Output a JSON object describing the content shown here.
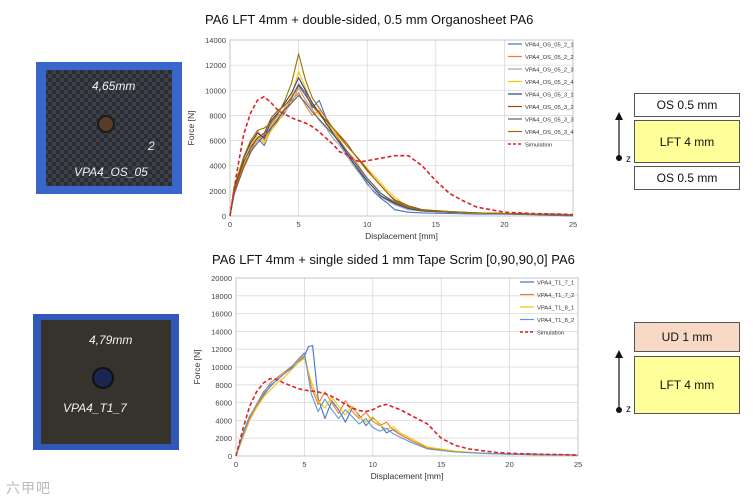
{
  "top": {
    "title": "PA6 LFT 4mm + double-sided, 0.5 mm  Organosheet PA6",
    "photo_labels": [
      "4,65mm",
      "2",
      "VPA4_OS_05"
    ],
    "layers": [
      "OS 0.5 mm",
      "LFT 4 mm",
      "OS 0.5 mm"
    ],
    "z_label": "z"
  },
  "bottom": {
    "title": "PA6 LFT 4mm + single sided 1 mm  Tape Scrim  [0,90,90,0] PA6",
    "photo_labels": [
      "4,79mm",
      "VPA4_T1_7"
    ],
    "layers": [
      "UD 1 mm",
      "LFT 4 mm"
    ],
    "z_label": "z"
  },
  "watermark": "六甲吧",
  "colors": {
    "layer_os": "#ffffff",
    "layer_lft": "#ffff99",
    "layer_ud": "#f8d9c6",
    "simulation": "#e02020"
  },
  "chart_data": [
    {
      "type": "line",
      "xlabel": "Displacement [mm]",
      "ylabel": "Force [N]",
      "xlim": [
        0,
        25
      ],
      "ylim": [
        0,
        14000
      ],
      "xticks": [
        0,
        5,
        10,
        15,
        20,
        25
      ],
      "yticks": [
        0,
        2000,
        4000,
        6000,
        8000,
        10000,
        12000,
        14000
      ],
      "grid": true,
      "legend_position": "right",
      "series": [
        {
          "name": "VPA4_OS_05_2_1",
          "color": "#4472c4",
          "dash": false,
          "x": [
            0,
            0.3,
            1,
            1.5,
            2,
            2.5,
            3,
            3.5,
            4,
            4.5,
            5,
            5.5,
            6,
            6.5,
            7,
            7.5,
            8,
            8.5,
            9,
            9.5,
            10,
            10.5,
            11,
            11.5,
            12,
            13,
            14,
            16,
            18,
            20,
            22,
            25
          ],
          "y": [
            0,
            2000,
            4200,
            5500,
            6200,
            5600,
            7000,
            7600,
            8200,
            9400,
            10500,
            9800,
            8600,
            9200,
            7800,
            6500,
            5800,
            5000,
            4200,
            3400,
            2600,
            1900,
            1400,
            1000,
            500,
            300,
            250,
            200,
            150,
            150,
            100,
            0
          ]
        },
        {
          "name": "VPA4_OS_05_2_2",
          "color": "#ed7d31",
          "dash": false,
          "x": [
            0,
            0.3,
            1,
            1.5,
            2,
            2.5,
            3,
            3.5,
            4,
            4.5,
            5,
            5.5,
            6,
            6.5,
            7,
            7.5,
            8,
            8.5,
            9,
            9.5,
            10,
            10.5,
            11,
            12,
            13,
            14,
            16,
            18,
            20,
            22,
            25
          ],
          "y": [
            0,
            1800,
            3800,
            5000,
            6800,
            6000,
            7200,
            7800,
            8600,
            9200,
            9800,
            8800,
            8000,
            8400,
            7300,
            6800,
            6000,
            5200,
            4600,
            3800,
            3000,
            2400,
            1800,
            1000,
            600,
            400,
            300,
            250,
            200,
            150,
            100
          ]
        },
        {
          "name": "VPA4_OS_05_2_3",
          "color": "#a5a5a5",
          "dash": false,
          "x": [
            0,
            0.3,
            1,
            1.5,
            2,
            2.5,
            3,
            3.5,
            4,
            4.5,
            5,
            5.5,
            6,
            6.5,
            7,
            7.5,
            8,
            8.5,
            9,
            9.5,
            10,
            10.5,
            11,
            12,
            13,
            14,
            16,
            18,
            20,
            22,
            25
          ],
          "y": [
            0,
            2100,
            4400,
            5200,
            6000,
            6500,
            7400,
            8000,
            8300,
            9000,
            10200,
            9200,
            8500,
            7600,
            7000,
            6200,
            5600,
            4800,
            4000,
            3300,
            2500,
            2000,
            1500,
            900,
            500,
            400,
            300,
            200,
            200,
            150,
            100
          ]
        },
        {
          "name": "VPA4_OS_05_2_4",
          "color": "#ffc000",
          "dash": false,
          "x": [
            0,
            0.3,
            1,
            1.5,
            2,
            2.5,
            3,
            3.5,
            4,
            4.5,
            5,
            5.5,
            6,
            6.5,
            7,
            7.5,
            8,
            8.5,
            9,
            9.5,
            10,
            10.5,
            11,
            11.5,
            12,
            12.5,
            13,
            14,
            16,
            18,
            20,
            22,
            25
          ],
          "y": [
            0,
            1900,
            4000,
            5600,
            6400,
            5800,
            6800,
            7500,
            8400,
            9600,
            11500,
            10200,
            8800,
            8000,
            7600,
            6800,
            6200,
            5600,
            5000,
            4400,
            3800,
            3200,
            2600,
            2000,
            1500,
            1100,
            800,
            500,
            350,
            250,
            200,
            150,
            100
          ]
        },
        {
          "name": "VPA4_OS_05_3_1",
          "color": "#264478",
          "dash": false,
          "x": [
            0,
            0.3,
            1,
            1.5,
            2,
            2.5,
            3,
            3.5,
            4,
            4.5,
            5,
            5.5,
            6,
            6.5,
            7,
            7.5,
            8,
            8.5,
            9,
            9.5,
            10,
            10.5,
            11,
            12,
            13,
            14,
            16,
            18,
            20,
            22,
            25
          ],
          "y": [
            0,
            2200,
            4600,
            5800,
            6600,
            6200,
            7600,
            8200,
            9000,
            9800,
            11000,
            10000,
            9000,
            8200,
            7400,
            6600,
            5800,
            5000,
            4200,
            3500,
            2800,
            2200,
            1600,
            1000,
            600,
            400,
            300,
            250,
            200,
            150,
            100
          ]
        },
        {
          "name": "VPA4_OS_05_3_2",
          "color": "#9e480e",
          "dash": false,
          "x": [
            0,
            0.3,
            1,
            1.5,
            2,
            2.5,
            3,
            3.5,
            4,
            4.5,
            5,
            5.5,
            6,
            6.5,
            7,
            7.5,
            8,
            8.5,
            9,
            9.5,
            10,
            10.5,
            11,
            11.5,
            12,
            13,
            14,
            16,
            18,
            20,
            22,
            25
          ],
          "y": [
            0,
            2000,
            4300,
            5400,
            6200,
            6600,
            7800,
            8400,
            8800,
            9400,
            10400,
            9600,
            8800,
            8200,
            7600,
            7000,
            6400,
            5800,
            5000,
            4300,
            3600,
            3000,
            2400,
            1800,
            1300,
            800,
            500,
            350,
            250,
            200,
            150,
            100
          ]
        },
        {
          "name": "VPA4_OS_05_3_3",
          "color": "#636363",
          "dash": false,
          "x": [
            0,
            0.3,
            1,
            1.5,
            2,
            2.5,
            3,
            3.5,
            4,
            4.5,
            5,
            5.5,
            6,
            6.5,
            7,
            7.5,
            8,
            8.5,
            9,
            9.5,
            10,
            10.5,
            11,
            12,
            13,
            14,
            16,
            18,
            20,
            22,
            25
          ],
          "y": [
            0,
            1700,
            3900,
            5100,
            5800,
            6400,
            7000,
            7700,
            8500,
            9000,
            9600,
            9000,
            8300,
            7700,
            7100,
            6500,
            5900,
            5200,
            4400,
            3700,
            3000,
            2400,
            1800,
            1100,
            700,
            450,
            300,
            250,
            200,
            150,
            100
          ]
        },
        {
          "name": "VPA4_OS_05_3_4",
          "color": "#997300",
          "dash": false,
          "x": [
            0,
            0.3,
            1,
            1.5,
            2,
            2.5,
            3,
            3.5,
            4,
            4.5,
            5,
            5.5,
            6,
            6.5,
            7,
            7.5,
            8,
            8.5,
            9,
            9.5,
            10,
            10.5,
            11,
            11.5,
            12,
            13,
            14,
            16,
            18,
            20,
            22,
            25
          ],
          "y": [
            0,
            2300,
            4700,
            6000,
            6800,
            7000,
            7400,
            8100,
            9200,
            10600,
            12900,
            10800,
            9400,
            8600,
            7800,
            7000,
            6300,
            5600,
            5000,
            4400,
            3700,
            3000,
            2400,
            1800,
            1200,
            700,
            450,
            350,
            250,
            200,
            150,
            100
          ]
        },
        {
          "name": "Simulation",
          "color": "#e02020",
          "dash": true,
          "x": [
            0,
            0.5,
            1,
            1.5,
            2,
            2.5,
            3,
            3.5,
            4,
            4.5,
            5,
            5.5,
            6,
            6.5,
            7,
            7.5,
            8,
            8.5,
            9,
            9.5,
            10,
            11,
            12,
            13,
            14,
            15,
            16,
            17,
            18,
            19,
            20,
            22,
            24,
            25
          ],
          "y": [
            0,
            3500,
            6500,
            8200,
            9200,
            9500,
            9000,
            8400,
            8100,
            7800,
            7600,
            7400,
            7100,
            6700,
            6200,
            5700,
            5100,
            4900,
            4500,
            4300,
            4400,
            4600,
            4800,
            4800,
            4000,
            2800,
            1800,
            1200,
            700,
            500,
            300,
            200,
            150,
            100
          ]
        }
      ]
    },
    {
      "type": "line",
      "xlabel": "Displacement [mm]",
      "ylabel": "Force [N]",
      "xlim": [
        0,
        25
      ],
      "ylim": [
        0,
        20000
      ],
      "xticks": [
        0,
        5,
        10,
        15,
        20,
        25
      ],
      "yticks": [
        0,
        2000,
        4000,
        6000,
        8000,
        10000,
        12000,
        14000,
        16000,
        18000,
        20000
      ],
      "grid": true,
      "legend_position": "right",
      "series": [
        {
          "name": "VPA4_T1_7_1",
          "color": "#4472c4",
          "dash": false,
          "x": [
            0,
            0.5,
            1,
            1.5,
            2,
            2.5,
            3,
            3.5,
            4,
            4.5,
            5,
            5.3,
            5.6,
            6,
            6.5,
            7,
            7.5,
            8,
            8.5,
            9,
            9.5,
            10,
            10.5,
            11,
            11.5,
            12,
            13,
            14,
            16,
            18,
            20,
            22,
            25
          ],
          "y": [
            0,
            2500,
            4500,
            5500,
            6800,
            7800,
            8600,
            9200,
            9800,
            10400,
            11200,
            12300,
            12400,
            6500,
            4200,
            6200,
            5200,
            3800,
            5400,
            4600,
            3400,
            4300,
            3600,
            2600,
            3000,
            2400,
            1600,
            900,
            500,
            300,
            250,
            200,
            100
          ]
        },
        {
          "name": "VPA4_T1_7_2",
          "color": "#ed7d31",
          "dash": false,
          "x": [
            0,
            0.5,
            1,
            1.5,
            2,
            2.5,
            3,
            3.5,
            4,
            4.5,
            5,
            5.5,
            6,
            6.5,
            7,
            7.5,
            8,
            8.5,
            9,
            9.5,
            10,
            10.5,
            11,
            11.5,
            12,
            13,
            14,
            16,
            18,
            20,
            22,
            25
          ],
          "y": [
            0,
            2200,
            4200,
            5600,
            7000,
            8200,
            8800,
            9400,
            10000,
            10600,
            11500,
            7800,
            5800,
            7200,
            6000,
            4800,
            6200,
            5000,
            4200,
            4900,
            3900,
            3400,
            3800,
            2900,
            2400,
            1600,
            900,
            500,
            300,
            200,
            150,
            100
          ]
        },
        {
          "name": "VPA4_T1_8_1",
          "color": "#ffc000",
          "dash": false,
          "x": [
            0,
            0.5,
            1,
            1.5,
            2,
            2.5,
            3,
            3.5,
            4,
            4.5,
            5,
            5.5,
            6,
            6.5,
            7,
            7.5,
            8,
            8.5,
            9,
            9.5,
            10,
            10.5,
            11,
            11.5,
            12,
            13,
            14,
            16,
            18,
            20,
            22,
            25
          ],
          "y": [
            0,
            2000,
            4000,
            5400,
            6600,
            7400,
            8200,
            8800,
            9600,
            10400,
            11000,
            8400,
            6200,
            5400,
            6600,
            5600,
            4600,
            5600,
            4400,
            3800,
            4400,
            3500,
            3000,
            3300,
            2600,
            1800,
            1000,
            550,
            300,
            200,
            150,
            100
          ]
        },
        {
          "name": "VPA4_T1_8_2",
          "color": "#5b9bd5",
          "dash": false,
          "x": [
            0,
            0.5,
            1,
            1.5,
            2,
            2.5,
            3,
            3.5,
            4,
            4.5,
            5,
            5.5,
            6,
            6.5,
            7,
            7.5,
            8,
            8.5,
            9,
            9.5,
            10,
            10.5,
            11,
            11.5,
            12,
            13,
            14,
            16,
            18,
            20,
            22,
            25
          ],
          "y": [
            0,
            2300,
            4400,
            5800,
            7200,
            8000,
            8500,
            9200,
            9900,
            10800,
            11600,
            7000,
            5000,
            6400,
            5200,
            4200,
            5200,
            4400,
            3600,
            4200,
            3200,
            2800,
            3100,
            2500,
            2100,
            1400,
            800,
            450,
            300,
            200,
            150,
            100
          ]
        },
        {
          "name": "Simulation",
          "color": "#e02020",
          "dash": true,
          "x": [
            0,
            0.5,
            1,
            1.5,
            2,
            2.5,
            3,
            3.5,
            4,
            4.5,
            5,
            5.5,
            6,
            6.5,
            7,
            7.5,
            8,
            8.5,
            9,
            9.5,
            10,
            10.5,
            11,
            12,
            13,
            14,
            15,
            16,
            17,
            18,
            19,
            20,
            22,
            24,
            25
          ],
          "y": [
            0,
            3000,
            5600,
            7200,
            8200,
            8700,
            8600,
            8200,
            7900,
            7600,
            7400,
            7300,
            7200,
            7000,
            6700,
            6300,
            5800,
            5400,
            5100,
            5000,
            5200,
            5600,
            5800,
            5200,
            4400,
            3600,
            2000,
            1200,
            800,
            600,
            400,
            300,
            200,
            150,
            100
          ]
        }
      ]
    }
  ]
}
